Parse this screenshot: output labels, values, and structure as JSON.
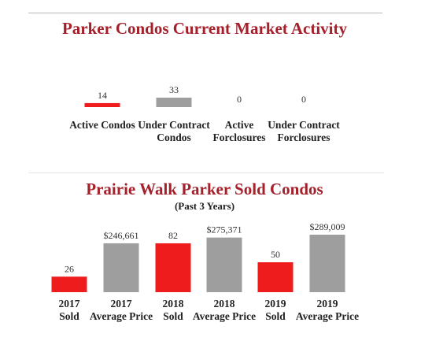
{
  "header": {
    "title": "Parker Condos Current Market Activity"
  },
  "section2": {
    "title": "Prairie Walk Parker Sold Condos",
    "subtitle": "(Past 3 Years)"
  },
  "colors": {
    "title": "#a4212b",
    "red_bar": "#ee1c1c",
    "gray_bar": "#9e9e9e"
  },
  "chart_data": [
    {
      "type": "bar",
      "title": "Parker Condos Current Market Activity",
      "categories": [
        [
          "Active Condos"
        ],
        [
          "Under Contract",
          "Condos"
        ],
        [
          "Active",
          "Forclosures"
        ],
        [
          "Under Contract",
          "Forclosures"
        ]
      ],
      "values": [
        14,
        33,
        0,
        0
      ],
      "value_labels": [
        "14",
        "33",
        "0",
        "0"
      ],
      "colors": [
        "#ee1c1c",
        "#9e9e9e",
        "#9e9e9e",
        "#9e9e9e"
      ],
      "ylim": [
        0,
        33
      ]
    },
    {
      "type": "bar",
      "title": "Prairie Walk Parker Sold Condos",
      "subtitle": "(Past 3 Years)",
      "categories": [
        [
          "2017",
          "Sold"
        ],
        [
          "2017",
          "Average Price"
        ],
        [
          "2018",
          "Sold"
        ],
        [
          "2018",
          "Average Price"
        ],
        [
          "2019",
          "Sold"
        ],
        [
          "2019",
          "Average Price"
        ]
      ],
      "values": [
        26,
        246661,
        82,
        275371,
        50,
        289009
      ],
      "value_labels": [
        "26",
        "$246,661",
        "82",
        "$275,371",
        "50",
        "$289,009"
      ],
      "colors": [
        "#ee1c1c",
        "#9e9e9e",
        "#ee1c1c",
        "#9e9e9e",
        "#ee1c1c",
        "#9e9e9e"
      ],
      "visual_scale": [
        0.27,
        0.85,
        0.85,
        0.95,
        0.52,
        1.0
      ]
    }
  ]
}
